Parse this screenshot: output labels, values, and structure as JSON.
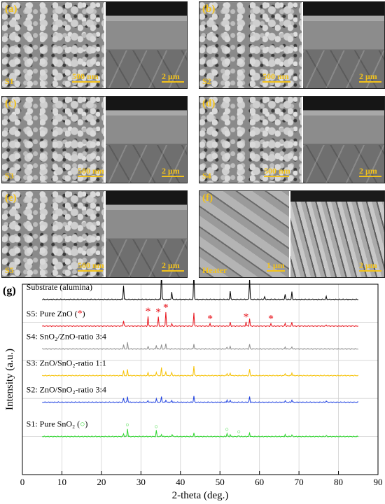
{
  "panels": [
    {
      "tag": "(a)",
      "sample": "S1",
      "scale_left": "500 nm",
      "scale_right": "2 μm"
    },
    {
      "tag": "(b)",
      "sample": "S2",
      "scale_left": "500 nm",
      "scale_right": "2 μm"
    },
    {
      "tag": "(c)",
      "sample": "S3",
      "scale_left": "500 nm",
      "scale_right": "2 μm"
    },
    {
      "tag": "(d)",
      "sample": "S4",
      "scale_left": "500 nm",
      "scale_right": "2 μm"
    },
    {
      "tag": "(e)",
      "sample": "S5",
      "scale_left": "500 nm",
      "scale_right": "2 μm"
    },
    {
      "tag": "(f)",
      "sample": "Heater",
      "scale_left": "1 μm",
      "scale_right": "2 μm"
    }
  ],
  "chart_data": {
    "type": "line",
    "panel_label": "(g)",
    "xlabel": "2-theta (deg.)",
    "ylabel": "Intensity (a.u.)",
    "xlim": [
      0,
      90
    ],
    "x_ticks": [
      0,
      10,
      20,
      30,
      40,
      50,
      60,
      70,
      80,
      90
    ],
    "grid": true,
    "series": [
      {
        "name": "Substrate (alumina)",
        "color": "#000000",
        "baseline": 0.92,
        "peaks": [
          [
            25.6,
            3.0
          ],
          [
            35.2,
            6.4
          ],
          [
            37.8,
            1.7
          ],
          [
            43.4,
            6.2
          ],
          [
            52.6,
            1.8
          ],
          [
            57.5,
            4.8
          ],
          [
            61.3,
            0.6
          ],
          [
            66.5,
            1.1
          ],
          [
            68.2,
            1.6
          ],
          [
            76.9,
            0.6
          ]
        ]
      },
      {
        "name": "S5: Pure ZnO",
        "color": "#e8141c",
        "baseline": 0.78,
        "peaks": [
          [
            25.6,
            1.2
          ],
          [
            31.8,
            2.1
          ],
          [
            34.4,
            2.0
          ],
          [
            36.3,
            3.0
          ],
          [
            37.8,
            0.5
          ],
          [
            43.4,
            3.0
          ],
          [
            47.5,
            0.5
          ],
          [
            52.6,
            0.8
          ],
          [
            56.6,
            0.9
          ],
          [
            57.5,
            1.6
          ],
          [
            62.9,
            0.5
          ],
          [
            66.5,
            0.6
          ],
          [
            68.2,
            0.8
          ],
          [
            76.9,
            0.3
          ]
        ]
      },
      {
        "name": "S4: SnO₂/ZnO-ratio 3:4",
        "color": "#8c8c8c",
        "baseline": 0.66,
        "peaks": [
          [
            25.6,
            0.9
          ],
          [
            26.6,
            1.4
          ],
          [
            31.8,
            0.5
          ],
          [
            33.9,
            0.8
          ],
          [
            35.2,
            0.9
          ],
          [
            36.3,
            1.1
          ],
          [
            43.4,
            1.1
          ],
          [
            51.8,
            0.4
          ],
          [
            52.6,
            0.5
          ],
          [
            57.5,
            1.0
          ],
          [
            66.5,
            0.4
          ],
          [
            68.2,
            0.5
          ]
        ]
      },
      {
        "name": "S3: ZnO/SnO₂-ratio 1:1",
        "color": "#f5c000",
        "baseline": 0.52,
        "peaks": [
          [
            25.6,
            1.0
          ],
          [
            26.6,
            1.3
          ],
          [
            31.8,
            0.6
          ],
          [
            33.9,
            0.8
          ],
          [
            35.2,
            1.7
          ],
          [
            36.3,
            0.9
          ],
          [
            37.8,
            0.7
          ],
          [
            43.4,
            2.1
          ],
          [
            51.8,
            0.5
          ],
          [
            52.6,
            0.6
          ],
          [
            57.5,
            1.4
          ],
          [
            66.5,
            0.5
          ],
          [
            68.2,
            0.6
          ]
        ]
      },
      {
        "name": "S2: ZnO/SnO₂-ratio 3:4",
        "color": "#1c3fe0",
        "baseline": 0.38,
        "peaks": [
          [
            25.6,
            0.9
          ],
          [
            26.6,
            1.3
          ],
          [
            31.8,
            0.4
          ],
          [
            33.9,
            0.8
          ],
          [
            35.2,
            1.3
          ],
          [
            36.3,
            0.5
          ],
          [
            37.8,
            0.4
          ],
          [
            43.4,
            1.4
          ],
          [
            51.8,
            0.5
          ],
          [
            52.6,
            0.5
          ],
          [
            57.5,
            1.2
          ],
          [
            66.5,
            0.4
          ],
          [
            68.2,
            0.5
          ],
          [
            76.9,
            0.3
          ]
        ]
      },
      {
        "name": "S1: Pure SnO₂",
        "color": "#2bd62b",
        "baseline": 0.2,
        "peaks": [
          [
            25.6,
            0.6
          ],
          [
            26.6,
            1.7
          ],
          [
            33.9,
            1.3
          ],
          [
            35.2,
            0.5
          ],
          [
            37.9,
            0.5
          ],
          [
            43.4,
            0.7
          ],
          [
            51.8,
            0.7
          ],
          [
            52.6,
            0.4
          ],
          [
            54.8,
            0.2
          ],
          [
            57.5,
            0.8
          ],
          [
            66.5,
            0.4
          ],
          [
            68.2,
            0.4
          ],
          [
            76.9,
            0.2
          ]
        ]
      }
    ],
    "annotations": {
      "zno_markers": {
        "symbol": "*",
        "color": "#e8141c",
        "x": [
          31.8,
          34.4,
          36.3,
          47.5,
          56.6,
          62.9
        ]
      },
      "sno2_markers": {
        "symbol": "○",
        "color": "#2bd62b",
        "x": [
          26.6,
          33.9,
          51.8,
          54.8
        ]
      }
    }
  }
}
